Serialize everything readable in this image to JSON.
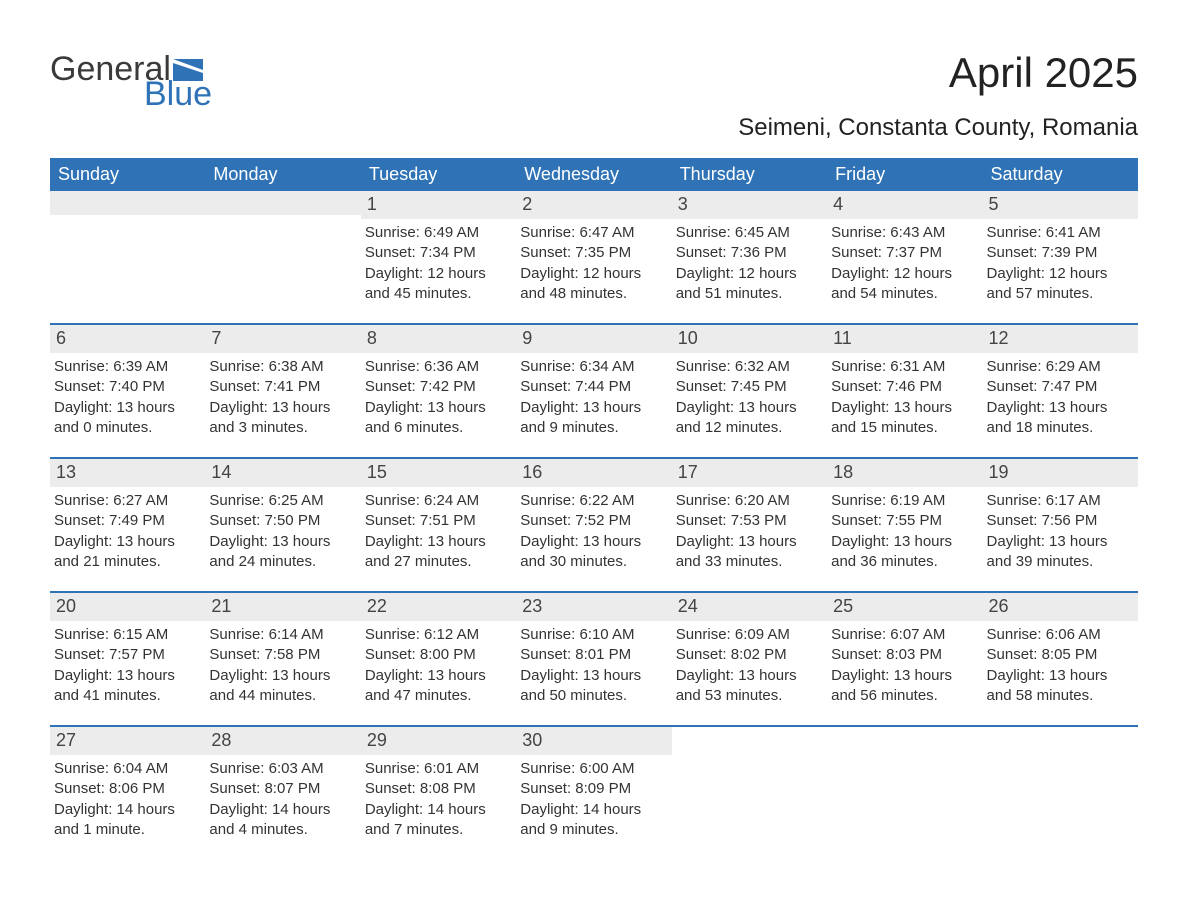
{
  "brand": {
    "text_general": "General",
    "text_blue": "Blue",
    "flag_color": "#2f73b6",
    "logo_text_color_dark": "#3a3a3a"
  },
  "title": {
    "month_year": "April 2025",
    "location": "Seimeni, Constanta County, Romania"
  },
  "style": {
    "header_bg": "#2f73b6",
    "header_text": "#ffffff",
    "daynum_bg": "#ececec",
    "body_text": "#333333",
    "rule_color": "#2f73b6",
    "page_bg": "#ffffff",
    "header_fontsize": 18,
    "title_fontsize": 42,
    "location_fontsize": 24,
    "daynum_fontsize": 18,
    "body_fontsize": 15
  },
  "weekdays": [
    "Sunday",
    "Monday",
    "Tuesday",
    "Wednesday",
    "Thursday",
    "Friday",
    "Saturday"
  ],
  "weeks": [
    [
      null,
      null,
      {
        "n": "1",
        "sunrise": "Sunrise: 6:49 AM",
        "sunset": "Sunset: 7:34 PM",
        "daylight": "Daylight: 12 hours and 45 minutes."
      },
      {
        "n": "2",
        "sunrise": "Sunrise: 6:47 AM",
        "sunset": "Sunset: 7:35 PM",
        "daylight": "Daylight: 12 hours and 48 minutes."
      },
      {
        "n": "3",
        "sunrise": "Sunrise: 6:45 AM",
        "sunset": "Sunset: 7:36 PM",
        "daylight": "Daylight: 12 hours and 51 minutes."
      },
      {
        "n": "4",
        "sunrise": "Sunrise: 6:43 AM",
        "sunset": "Sunset: 7:37 PM",
        "daylight": "Daylight: 12 hours and 54 minutes."
      },
      {
        "n": "5",
        "sunrise": "Sunrise: 6:41 AM",
        "sunset": "Sunset: 7:39 PM",
        "daylight": "Daylight: 12 hours and 57 minutes."
      }
    ],
    [
      {
        "n": "6",
        "sunrise": "Sunrise: 6:39 AM",
        "sunset": "Sunset: 7:40 PM",
        "daylight": "Daylight: 13 hours and 0 minutes."
      },
      {
        "n": "7",
        "sunrise": "Sunrise: 6:38 AM",
        "sunset": "Sunset: 7:41 PM",
        "daylight": "Daylight: 13 hours and 3 minutes."
      },
      {
        "n": "8",
        "sunrise": "Sunrise: 6:36 AM",
        "sunset": "Sunset: 7:42 PM",
        "daylight": "Daylight: 13 hours and 6 minutes."
      },
      {
        "n": "9",
        "sunrise": "Sunrise: 6:34 AM",
        "sunset": "Sunset: 7:44 PM",
        "daylight": "Daylight: 13 hours and 9 minutes."
      },
      {
        "n": "10",
        "sunrise": "Sunrise: 6:32 AM",
        "sunset": "Sunset: 7:45 PM",
        "daylight": "Daylight: 13 hours and 12 minutes."
      },
      {
        "n": "11",
        "sunrise": "Sunrise: 6:31 AM",
        "sunset": "Sunset: 7:46 PM",
        "daylight": "Daylight: 13 hours and 15 minutes."
      },
      {
        "n": "12",
        "sunrise": "Sunrise: 6:29 AM",
        "sunset": "Sunset: 7:47 PM",
        "daylight": "Daylight: 13 hours and 18 minutes."
      }
    ],
    [
      {
        "n": "13",
        "sunrise": "Sunrise: 6:27 AM",
        "sunset": "Sunset: 7:49 PM",
        "daylight": "Daylight: 13 hours and 21 minutes."
      },
      {
        "n": "14",
        "sunrise": "Sunrise: 6:25 AM",
        "sunset": "Sunset: 7:50 PM",
        "daylight": "Daylight: 13 hours and 24 minutes."
      },
      {
        "n": "15",
        "sunrise": "Sunrise: 6:24 AM",
        "sunset": "Sunset: 7:51 PM",
        "daylight": "Daylight: 13 hours and 27 minutes."
      },
      {
        "n": "16",
        "sunrise": "Sunrise: 6:22 AM",
        "sunset": "Sunset: 7:52 PM",
        "daylight": "Daylight: 13 hours and 30 minutes."
      },
      {
        "n": "17",
        "sunrise": "Sunrise: 6:20 AM",
        "sunset": "Sunset: 7:53 PM",
        "daylight": "Daylight: 13 hours and 33 minutes."
      },
      {
        "n": "18",
        "sunrise": "Sunrise: 6:19 AM",
        "sunset": "Sunset: 7:55 PM",
        "daylight": "Daylight: 13 hours and 36 minutes."
      },
      {
        "n": "19",
        "sunrise": "Sunrise: 6:17 AM",
        "sunset": "Sunset: 7:56 PM",
        "daylight": "Daylight: 13 hours and 39 minutes."
      }
    ],
    [
      {
        "n": "20",
        "sunrise": "Sunrise: 6:15 AM",
        "sunset": "Sunset: 7:57 PM",
        "daylight": "Daylight: 13 hours and 41 minutes."
      },
      {
        "n": "21",
        "sunrise": "Sunrise: 6:14 AM",
        "sunset": "Sunset: 7:58 PM",
        "daylight": "Daylight: 13 hours and 44 minutes."
      },
      {
        "n": "22",
        "sunrise": "Sunrise: 6:12 AM",
        "sunset": "Sunset: 8:00 PM",
        "daylight": "Daylight: 13 hours and 47 minutes."
      },
      {
        "n": "23",
        "sunrise": "Sunrise: 6:10 AM",
        "sunset": "Sunset: 8:01 PM",
        "daylight": "Daylight: 13 hours and 50 minutes."
      },
      {
        "n": "24",
        "sunrise": "Sunrise: 6:09 AM",
        "sunset": "Sunset: 8:02 PM",
        "daylight": "Daylight: 13 hours and 53 minutes."
      },
      {
        "n": "25",
        "sunrise": "Sunrise: 6:07 AM",
        "sunset": "Sunset: 8:03 PM",
        "daylight": "Daylight: 13 hours and 56 minutes."
      },
      {
        "n": "26",
        "sunrise": "Sunrise: 6:06 AM",
        "sunset": "Sunset: 8:05 PM",
        "daylight": "Daylight: 13 hours and 58 minutes."
      }
    ],
    [
      {
        "n": "27",
        "sunrise": "Sunrise: 6:04 AM",
        "sunset": "Sunset: 8:06 PM",
        "daylight": "Daylight: 14 hours and 1 minute."
      },
      {
        "n": "28",
        "sunrise": "Sunrise: 6:03 AM",
        "sunset": "Sunset: 8:07 PM",
        "daylight": "Daylight: 14 hours and 4 minutes."
      },
      {
        "n": "29",
        "sunrise": "Sunrise: 6:01 AM",
        "sunset": "Sunset: 8:08 PM",
        "daylight": "Daylight: 14 hours and 7 minutes."
      },
      {
        "n": "30",
        "sunrise": "Sunrise: 6:00 AM",
        "sunset": "Sunset: 8:09 PM",
        "daylight": "Daylight: 14 hours and 9 minutes."
      },
      null,
      null,
      null
    ]
  ]
}
